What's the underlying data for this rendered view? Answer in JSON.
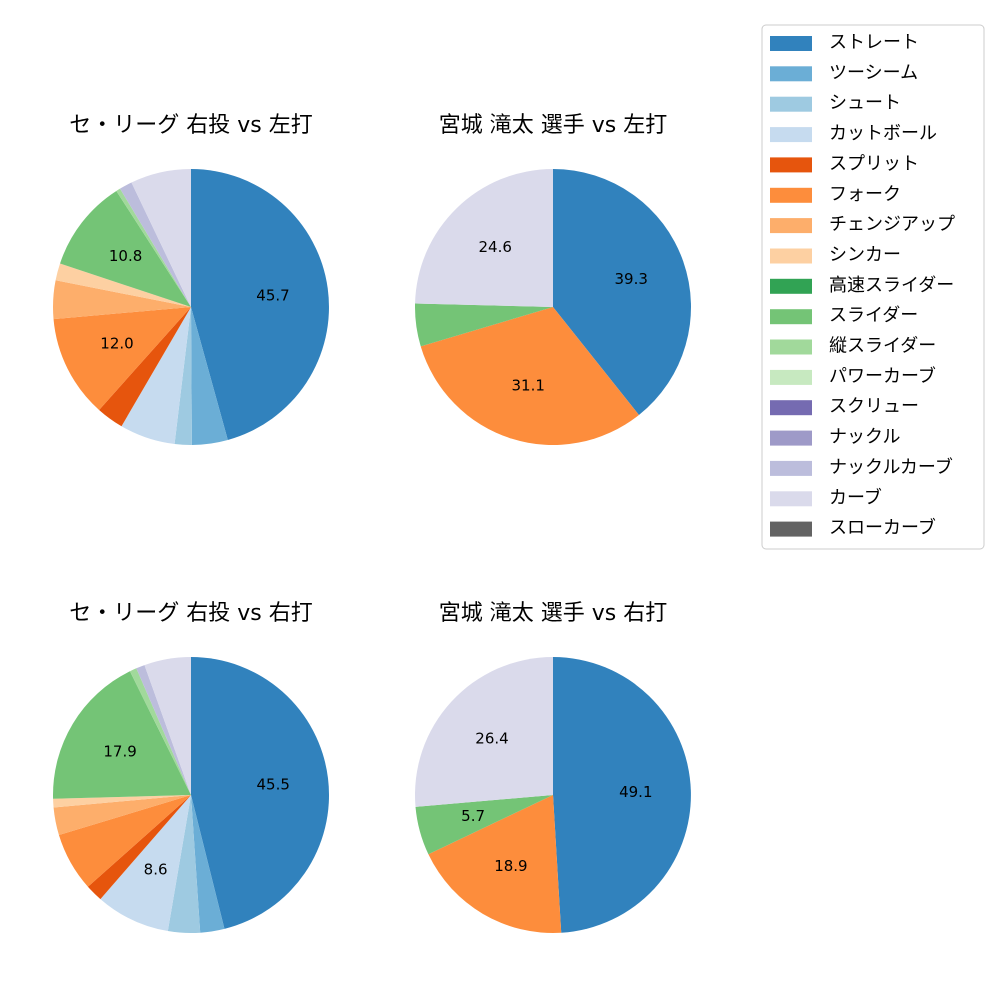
{
  "chart_data": {
    "type": "pie",
    "legend_position": "top-right",
    "categories": [
      "ストレート",
      "ツーシーム",
      "シュート",
      "カットボール",
      "スプリット",
      "フォーク",
      "チェンジアップ",
      "シンカー",
      "高速スライダー",
      "スライダー",
      "縦スライダー",
      "パワーカーブ",
      "スクリュー",
      "ナックル",
      "ナックルカーブ",
      "カーブ",
      "スローカーブ"
    ],
    "colors": [
      "#3182bd",
      "#6baed6",
      "#9ecae1",
      "#c6dbef",
      "#e6550d",
      "#fd8d3c",
      "#fdae6b",
      "#fdd0a2",
      "#31a354",
      "#74c476",
      "#a1d99b",
      "#c7e9c0",
      "#756bb1",
      "#9e9ac8",
      "#bcbddc",
      "#dadaeb",
      "#636363"
    ],
    "charts": [
      {
        "title": "セ・リーグ 右投 vs 左打",
        "values": [
          45.7,
          4.2,
          2.0,
          6.5,
          3.2,
          12.0,
          4.5,
          2.0,
          0,
          10.8,
          0.5,
          0,
          0,
          0,
          1.5,
          7.1,
          0
        ],
        "labels": [
          "45.7",
          "",
          "",
          "",
          "",
          "12.0",
          "",
          "",
          "",
          "10.8",
          "",
          "",
          "",
          "",
          "",
          "",
          ""
        ]
      },
      {
        "title": "宮城 滝太 選手 vs 左打",
        "values": [
          39.3,
          0,
          0,
          0,
          0,
          31.1,
          0,
          0,
          0,
          5.0,
          0,
          0,
          0,
          0,
          0,
          24.6,
          0
        ],
        "labels": [
          "39.3",
          "",
          "",
          "",
          "",
          "31.1",
          "",
          "",
          "",
          "",
          "",
          "",
          "",
          "",
          "",
          "24.6",
          ""
        ]
      },
      {
        "title": "セ・リーグ 右投 vs 右打",
        "values": [
          45.5,
          2.8,
          3.7,
          8.6,
          2.0,
          6.8,
          3.2,
          1.0,
          0,
          17.9,
          0.8,
          0,
          0,
          0,
          1.0,
          5.4,
          0
        ],
        "labels": [
          "45.5",
          "",
          "",
          "8.6",
          "",
          "",
          "",
          "",
          "",
          "17.9",
          "",
          "",
          "",
          "",
          "",
          "",
          ""
        ]
      },
      {
        "title": "宮城 滝太 選手 vs 右打",
        "values": [
          49.1,
          0,
          0,
          0,
          0,
          18.9,
          0,
          0,
          0,
          5.7,
          0,
          0,
          0,
          0,
          0,
          26.4,
          0
        ],
        "labels": [
          "49.1",
          "",
          "",
          "",
          "",
          "18.9",
          "",
          "",
          "",
          "5.7",
          "",
          "",
          "",
          "",
          "",
          "26.4",
          ""
        ]
      }
    ]
  }
}
